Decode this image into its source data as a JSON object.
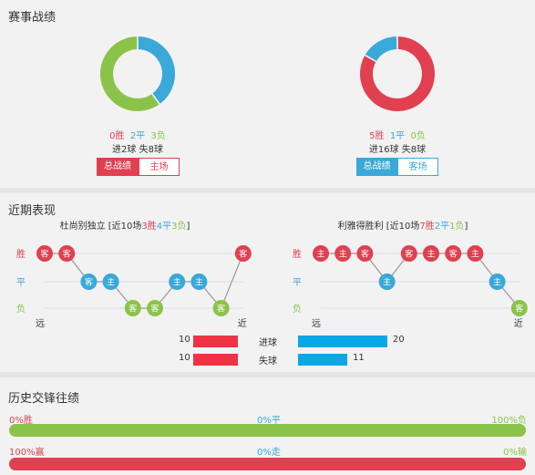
{
  "summary": {
    "title": "赛事战绩",
    "left": {
      "win": "0胜",
      "draw": "2平",
      "loss": "3负",
      "goals": "进2球  失8球",
      "tab_active": "总战绩",
      "tab_other": "主场",
      "donut": {
        "win": 0,
        "draw": 2,
        "loss": 3
      }
    },
    "right": {
      "win": "5胜",
      "draw": "1平",
      "loss": "0负",
      "goals": "进16球  失8球",
      "tab_active": "总战绩",
      "tab_other": "客场",
      "donut": {
        "win": 5,
        "draw": 1,
        "loss": 0
      }
    }
  },
  "recent": {
    "title": "近期表现",
    "left": {
      "team": "杜尚别独立",
      "prefix": " [近10场",
      "w": "3胜",
      "d": "4平",
      "l": "3负",
      "suffix": "]",
      "y_labels": [
        "胜",
        "平",
        "负"
      ],
      "x_far": "远",
      "x_near": "近",
      "matches": [
        {
          "r": "W",
          "v": "客"
        },
        {
          "r": "W",
          "v": "客"
        },
        {
          "r": "D",
          "v": "客"
        },
        {
          "r": "D",
          "v": "主"
        },
        {
          "r": "L",
          "v": "客"
        },
        {
          "r": "L",
          "v": "客"
        },
        {
          "r": "D",
          "v": "主"
        },
        {
          "r": "D",
          "v": "主"
        },
        {
          "r": "L",
          "v": "客"
        },
        {
          "r": "W",
          "v": "客"
        }
      ]
    },
    "right": {
      "team": "利雅得胜利",
      "prefix": " [近10场",
      "w": "7胜",
      "d": "2平",
      "l": "1负",
      "suffix": "]",
      "y_labels": [
        "胜",
        "平",
        "负"
      ],
      "x_far": "远",
      "x_near": "近",
      "matches": [
        {
          "r": "W",
          "v": "主"
        },
        {
          "r": "W",
          "v": "主"
        },
        {
          "r": "W",
          "v": "客"
        },
        {
          "r": "D",
          "v": "主"
        },
        {
          "r": "W",
          "v": "客"
        },
        {
          "r": "W",
          "v": "主"
        },
        {
          "r": "W",
          "v": "客"
        },
        {
          "r": "W",
          "v": "主"
        },
        {
          "r": "D",
          "v": "主"
        },
        {
          "r": "L",
          "v": "客"
        }
      ]
    },
    "goals_for": {
      "label": "进球",
      "left": 10,
      "right": 20
    },
    "goals_against": {
      "label": "失球",
      "left": 10,
      "right": 11
    }
  },
  "history": {
    "title": "历史交锋往绩",
    "row1": {
      "left": "0%胜",
      "mid": "0%平",
      "right": "100%负",
      "fill_fraction": 1.0
    },
    "row2": {
      "left": "100%赢",
      "mid": "0%走",
      "right": "0%输",
      "fill_fraction": 1.0
    }
  },
  "colors": {
    "win": "#e0404f",
    "draw": "#3aa8d8",
    "loss": "#8bc34a",
    "bar_red": "#ee3344",
    "bar_blue": "#0aa7e6",
    "history_green": "#8bc34a",
    "history_red": "#e0404f"
  }
}
